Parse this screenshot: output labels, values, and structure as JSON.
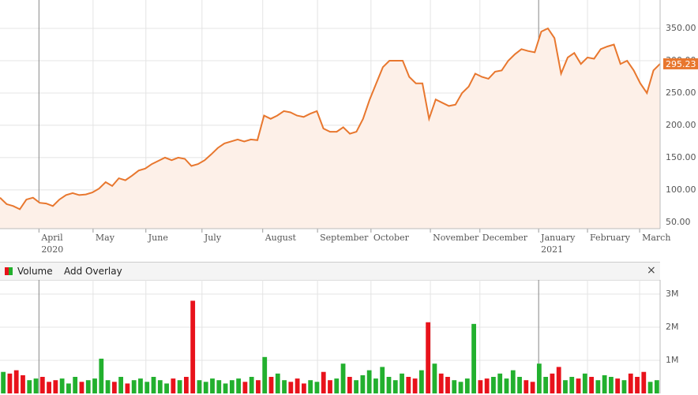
{
  "chart_data": [
    {
      "type": "line",
      "color": "#e8772e",
      "area_color": "#fdf0e8",
      "grid": true,
      "values": [
        88,
        78,
        75,
        70,
        85,
        88,
        80,
        79,
        75,
        85,
        92,
        95,
        92,
        93,
        96,
        102,
        112,
        106,
        118,
        115,
        122,
        130,
        133,
        140,
        145,
        150,
        146,
        150,
        148,
        137,
        140,
        146,
        155,
        165,
        172,
        175,
        178,
        175,
        178,
        177,
        215,
        210,
        215,
        222,
        220,
        215,
        213,
        218,
        222,
        195,
        190,
        190,
        197,
        187,
        190,
        210,
        240,
        265,
        290,
        300,
        300,
        300,
        275,
        265,
        265,
        210,
        240,
        235,
        230,
        232,
        250,
        260,
        280,
        275,
        272,
        283,
        285,
        300,
        310,
        318,
        315,
        313,
        345,
        350,
        335,
        280,
        305,
        312,
        295,
        305,
        303,
        318,
        322,
        325,
        295,
        300,
        285,
        265,
        250,
        285,
        295.23
      ],
      "last_value_label": "295.23",
      "xlim": [
        0,
        100
      ],
      "xticks": [
        {
          "value": 5.9,
          "label": "April"
        },
        {
          "value": 14.1,
          "label": "May"
        },
        {
          "value": 22.1,
          "label": "June"
        },
        {
          "value": 30.6,
          "label": "July"
        },
        {
          "value": 39.8,
          "label": "August"
        },
        {
          "value": 48.1,
          "label": "September"
        },
        {
          "value": 56.2,
          "label": "October"
        },
        {
          "value": 65.2,
          "label": "November"
        },
        {
          "value": 72.7,
          "label": "December"
        },
        {
          "value": 81.6,
          "label": "January"
        },
        {
          "value": 89,
          "label": "February"
        },
        {
          "value": 96.9,
          "label": "March"
        }
      ],
      "year_labels": [
        {
          "value": 5.9,
          "label": "2020"
        },
        {
          "value": 81.6,
          "label": "2021"
        }
      ],
      "ylim": [
        40,
        394
      ],
      "yticks": [
        {
          "value": 50,
          "label": "50.00"
        },
        {
          "value": 100,
          "label": "100.00"
        },
        {
          "value": 150,
          "label": "150.00"
        },
        {
          "value": 200,
          "label": "200.00"
        },
        {
          "value": 250,
          "label": "250.00"
        },
        {
          "value": 300,
          "label": "300.00"
        },
        {
          "value": 350,
          "label": "350.00"
        }
      ]
    },
    {
      "type": "bar",
      "up_color": "#22b02e",
      "down_color": "#e8121b",
      "grid": true,
      "legend": "Volume",
      "overlay_button": "Add Overlay",
      "close_button": "×",
      "values": [
        650000,
        600000,
        700000,
        550000,
        400000,
        450000,
        500000,
        350000,
        400000,
        450000,
        300000,
        500000,
        350000,
        400000,
        450000,
        1050000,
        400000,
        350000,
        500000,
        300000,
        400000,
        450000,
        350000,
        500000,
        400000,
        300000,
        450000,
        400000,
        500000,
        2800000,
        400000,
        350000,
        450000,
        400000,
        300000,
        400000,
        450000,
        350000,
        500000,
        400000,
        1100000,
        500000,
        600000,
        400000,
        350000,
        450000,
        300000,
        400000,
        350000,
        650000,
        400000,
        450000,
        900000,
        500000,
        400000,
        550000,
        700000,
        450000,
        800000,
        500000,
        400000,
        600000,
        500000,
        450000,
        700000,
        2150000,
        900000,
        600000,
        500000,
        400000,
        350000,
        450000,
        2100000,
        400000,
        450000,
        500000,
        600000,
        450000,
        700000,
        500000,
        400000,
        350000,
        900000,
        500000,
        600000,
        800000,
        400000,
        500000,
        450000,
        600000,
        500000,
        400000,
        550000,
        500000,
        450000,
        400000,
        600000,
        500000,
        650000,
        350000,
        400000
      ],
      "ylim": [
        0,
        3430000
      ],
      "yticks": [
        {
          "value": 1000000,
          "label": "1M"
        },
        {
          "value": 2000000,
          "label": "2M"
        },
        {
          "value": 3000000,
          "label": "3M"
        }
      ]
    }
  ]
}
